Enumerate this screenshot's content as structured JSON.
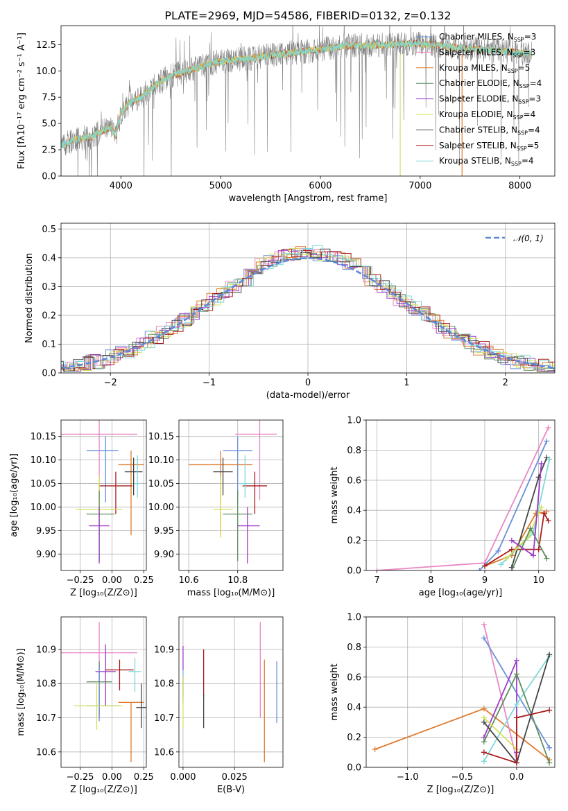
{
  "colors": {
    "Chabrier MILES": "#6a8fd9",
    "Salpeter MILES": "#e887c4",
    "Kroupa MILES": "#e07a2c",
    "Chabrier ELODIE": "#5e8c5e",
    "Salpeter ELODIE": "#9c3cc7",
    "Kroupa ELODIE": "#d4e05a",
    "Chabrier STELIB": "#444444",
    "Salpeter STELIB": "#a81b1b",
    "Kroupa STELIB": "#7fd8d8",
    "data": "#808080",
    "normal": "#5b88d6"
  },
  "chart_data": [
    {
      "id": "spectrum",
      "type": "line",
      "title": "PLATE=2969, MJD=54586, FIBERID=0132, z=0.132",
      "xlabel": "wavelength [Angstrom, rest frame]",
      "ylabel": "Flux [fλ10⁻¹⁷ erg cm⁻² s⁻¹ A⁻¹]",
      "xlim": [
        3400,
        8350
      ],
      "ylim": [
        0,
        14.3
      ],
      "xticks": [
        "4000",
        "5000",
        "6000",
        "7000",
        "8000"
      ],
      "yticks": [
        "0.0",
        "2.5",
        "5.0",
        "7.5",
        "10.0",
        "12.5"
      ],
      "legend_position": "upper-right",
      "legend": [
        {
          "name": "Chabrier MILES",
          "nssp": "3"
        },
        {
          "name": "Salpeter MILES",
          "nssp": "3"
        },
        {
          "name": "Kroupa MILES",
          "nssp": "5"
        },
        {
          "name": "Chabrier ELODIE",
          "nssp": "4"
        },
        {
          "name": "Salpeter ELODIE",
          "nssp": "3"
        },
        {
          "name": "Kroupa ELODIE",
          "nssp": "4"
        },
        {
          "name": "Chabrier STELIB",
          "nssp": "4"
        },
        {
          "name": "Salpeter STELIB",
          "nssp": "5"
        },
        {
          "name": "Kroupa STELIB",
          "nssp": "4"
        }
      ],
      "continuum": {
        "x": [
          3380,
          3500,
          3600,
          3700,
          3800,
          3900,
          3950,
          4000,
          4100,
          4200,
          4300,
          4400,
          4500,
          4700,
          4900,
          5100,
          5300,
          5500,
          5700,
          5900,
          6100,
          6300,
          6500,
          6700,
          6900,
          7100,
          7300,
          7500,
          7700,
          7900,
          8100
        ],
        "y": [
          2.8,
          3.3,
          3.6,
          3.7,
          4.2,
          4.6,
          3.8,
          6.0,
          7.1,
          7.5,
          8.3,
          9.0,
          9.5,
          10.1,
          10.7,
          11.0,
          11.2,
          11.5,
          11.7,
          11.9,
          12.2,
          12.4,
          12.4,
          12.5,
          12.6,
          12.5,
          12.3,
          12.1,
          12.0,
          11.8,
          11.6
        ]
      },
      "vertical_lines": [
        {
          "x": 6800,
          "series": "Kroupa ELODIE"
        },
        {
          "x": 7420,
          "series": "Kroupa MILES"
        }
      ]
    },
    {
      "id": "residuals",
      "type": "line",
      "xlabel": "(data-model)/error",
      "ylabel": "Normed distribution",
      "xlim": [
        -2.5,
        2.5
      ],
      "ylim": [
        0,
        0.52
      ],
      "xticks": [
        "−2",
        "−1",
        "0",
        "1",
        "2"
      ],
      "yticks": [
        "0.0",
        "0.1",
        "0.2",
        "0.3",
        "0.4",
        "0.5"
      ],
      "grid": true,
      "legend_position": "upper-right",
      "normal_label": "𝒩(0, 1)"
    },
    {
      "id": "age-vs-Z",
      "type": "scatter",
      "xlabel": "Z [log₁₀(Z/Z⊙)]",
      "ylabel": "age  [log₁₀(age/yr)]",
      "xlim": [
        -0.4,
        0.27
      ],
      "ylim": [
        9.865,
        10.185
      ],
      "xticks": [
        "−0.25",
        "0.00",
        "0.25"
      ],
      "yticks": [
        "9.90",
        "9.95",
        "10.00",
        "10.05",
        "10.10",
        "10.15"
      ],
      "grid": true,
      "points": [
        {
          "series": "Salpeter MILES",
          "x": -0.1,
          "xerr": [
            0.3,
            0.3
          ],
          "y": 10.155,
          "yerr": [
            0.14,
            0.03
          ]
        },
        {
          "series": "Chabrier MILES",
          "x": -0.05,
          "xerr": [
            0.15,
            0.1
          ],
          "y": 10.12,
          "yerr": [
            0.11,
            0.03
          ]
        },
        {
          "series": "Kroupa MILES",
          "x": 0.15,
          "xerr": [
            0.1,
            0.1
          ],
          "y": 10.09,
          "yerr": [
            0.15,
            0.03
          ]
        },
        {
          "series": "Chabrier STELIB",
          "x": 0.17,
          "xerr": [
            0.07,
            0.07
          ],
          "y": 10.075,
          "yerr": [
            0.05,
            0.03
          ]
        },
        {
          "series": "Salpeter STELIB",
          "x": 0.03,
          "xerr": [
            0.13,
            0.13
          ],
          "y": 10.045,
          "yerr": [
            0.06,
            0.03
          ]
        },
        {
          "series": "Kroupa STELIB",
          "x": 0.2,
          "xerr": [
            0.02,
            0.02
          ],
          "y": 10.05,
          "yerr": [
            0.03,
            0.06
          ]
        },
        {
          "series": "Kroupa ELODIE",
          "x": -0.1,
          "xerr": [
            0.18,
            0.18
          ],
          "y": 9.995,
          "yerr": [
            0.06,
            0.07
          ]
        },
        {
          "series": "Chabrier ELODIE",
          "x": -0.1,
          "xerr": [
            0.1,
            0.12
          ],
          "y": 9.985,
          "yerr": [
            0.1,
            0.05
          ]
        },
        {
          "series": "Salpeter ELODIE",
          "x": -0.1,
          "xerr": [
            0.08,
            0.08
          ],
          "y": 9.96,
          "yerr": [
            0.08,
            0.04
          ]
        }
      ]
    },
    {
      "id": "age-vs-mass",
      "type": "scatter",
      "xlabel": "mass [log₁₀(M/M⊙)]",
      "xlim": [
        10.56,
        10.985
      ],
      "ylim": [
        9.865,
        10.185
      ],
      "xticks": [
        "10.6",
        "10.8"
      ],
      "yticks": [
        "9.90",
        "9.95",
        "10.00",
        "10.05",
        "10.10",
        "10.15"
      ],
      "grid": true,
      "points": [
        {
          "series": "Salpeter MILES",
          "x": 10.89,
          "xerr": [
            0.1,
            0.07
          ],
          "y": 10.155,
          "yerr": [
            0.14,
            0.03
          ]
        },
        {
          "series": "Chabrier MILES",
          "x": 10.8,
          "xerr": [
            0.06,
            0.06
          ],
          "y": 10.12,
          "yerr": [
            0.11,
            0.03
          ]
        },
        {
          "series": "Kroupa MILES",
          "x": 10.73,
          "xerr": [
            0.13,
            0.13
          ],
          "y": 10.09,
          "yerr": [
            0.15,
            0.03
          ]
        },
        {
          "series": "Chabrier STELIB",
          "x": 10.74,
          "xerr": [
            0.04,
            0.04
          ],
          "y": 10.075,
          "yerr": [
            0.05,
            0.03
          ]
        },
        {
          "series": "Salpeter STELIB",
          "x": 10.87,
          "xerr": [
            0.05,
            0.05
          ],
          "y": 10.045,
          "yerr": [
            0.06,
            0.03
          ]
        },
        {
          "series": "Kroupa STELIB",
          "x": 10.83,
          "xerr": [
            0.02,
            0.02
          ],
          "y": 10.05,
          "yerr": [
            0.03,
            0.06
          ]
        },
        {
          "series": "Kroupa ELODIE",
          "x": 10.73,
          "xerr": [
            0.03,
            0.05
          ],
          "y": 9.995,
          "yerr": [
            0.06,
            0.07
          ]
        },
        {
          "series": "Chabrier ELODIE",
          "x": 10.8,
          "xerr": [
            0.06,
            0.06
          ],
          "y": 9.985,
          "yerr": [
            0.1,
            0.05
          ]
        },
        {
          "series": "Salpeter ELODIE",
          "x": 10.84,
          "xerr": [
            0.04,
            0.05
          ],
          "y": 9.96,
          "yerr": [
            0.08,
            0.04
          ]
        }
      ]
    },
    {
      "id": "mass-weight-vs-age",
      "type": "line",
      "xlabel": "age  [log₁₀(age/yr)]",
      "ylabel": "mass weight",
      "xlim": [
        6.8,
        10.3
      ],
      "ylim": [
        0,
        1.0
      ],
      "xticks": [
        "7",
        "8",
        "9",
        "10"
      ],
      "yticks": [
        "0.0",
        "0.2",
        "0.4",
        "0.6",
        "0.8",
        "1.0"
      ],
      "grid": true,
      "series": [
        {
          "name": "Salpeter MILES",
          "x": [
            7.0,
            9.0,
            10.18
          ],
          "y": [
            0.0,
            0.05,
            0.95
          ]
        },
        {
          "name": "Chabrier MILES",
          "x": [
            8.9,
            9.25,
            10.15
          ],
          "y": [
            0.0,
            0.13,
            0.86
          ]
        },
        {
          "name": "Kroupa MILES",
          "x": [
            9.0,
            9.5,
            9.95,
            10.15
          ],
          "y": [
            0.03,
            0.1,
            0.38,
            0.39
          ]
        },
        {
          "name": "Chabrier STELIB",
          "x": [
            9.5,
            10.0,
            10.15
          ],
          "y": [
            0.02,
            0.62,
            0.75
          ]
        },
        {
          "name": "Salpeter STELIB",
          "x": [
            9.0,
            9.5,
            10.0,
            10.1,
            10.18
          ],
          "y": [
            0.03,
            0.14,
            0.14,
            0.38,
            0.33
          ]
        },
        {
          "name": "Kroupa STELIB",
          "x": [
            9.3,
            9.9,
            10.2
          ],
          "y": [
            0.04,
            0.25,
            0.74
          ]
        },
        {
          "name": "Kroupa ELODIE",
          "x": [
            9.4,
            9.8,
            10.05
          ],
          "y": [
            0.08,
            0.22,
            0.42
          ]
        },
        {
          "name": "Chabrier ELODIE",
          "x": [
            9.5,
            9.85,
            10.15
          ],
          "y": [
            0.0,
            0.28,
            0.08
          ]
        },
        {
          "name": "Salpeter ELODIE",
          "x": [
            9.5,
            9.9,
            10.05
          ],
          "y": [
            0.2,
            0.1,
            0.71
          ]
        }
      ]
    },
    {
      "id": "mass-vs-Z",
      "type": "scatter",
      "xlabel": "Z [log₁₀(Z/Z⊙)]",
      "ylabel": "mass [log₁₀(M/M⊙)]",
      "xlim": [
        -0.4,
        0.27
      ],
      "ylim": [
        10.555,
        10.995
      ],
      "xticks": [
        "−0.25",
        "0.00",
        "0.25"
      ],
      "yticks": [
        "10.6",
        "10.7",
        "10.8",
        "10.9"
      ],
      "grid": true,
      "points": [
        {
          "series": "Salpeter MILES",
          "x": -0.1,
          "xerr": [
            0.3,
            0.3
          ],
          "y": 10.89,
          "yerr": [
            0.19,
            0.09
          ]
        },
        {
          "series": "Kroupa MILES",
          "x": 0.15,
          "xerr": [
            0.1,
            0.1
          ],
          "y": 10.745,
          "yerr": [
            0.175,
            0.0
          ]
        },
        {
          "series": "Salpeter ELODIE",
          "x": -0.05,
          "xerr": [
            0.08,
            0.08
          ],
          "y": 10.835,
          "yerr": [
            0.1,
            0.08
          ]
        },
        {
          "series": "Salpeter STELIB",
          "x": 0.06,
          "xerr": [
            0.11,
            0.11
          ],
          "y": 10.84,
          "yerr": [
            0.06,
            0.03
          ]
        },
        {
          "series": "Kroupa STELIB",
          "x": 0.18,
          "xerr": [
            0.05,
            0.05
          ],
          "y": 10.835,
          "yerr": [
            0.06,
            0.04
          ]
        },
        {
          "series": "Chabrier ELODIE",
          "x": -0.1,
          "xerr": [
            0.1,
            0.1
          ],
          "y": 10.805,
          "yerr": [
            0.1,
            0.06
          ]
        },
        {
          "series": "Chabrier MILES",
          "x": -0.1,
          "xerr": [
            0.1,
            0.16
          ],
          "y": 10.735,
          "yerr": [
            0.045,
            0.115
          ]
        },
        {
          "series": "Kroupa ELODIE",
          "x": -0.12,
          "xerr": [
            0.18,
            0.2
          ],
          "y": 10.735,
          "yerr": [
            0.07,
            0.07
          ]
        },
        {
          "series": "Chabrier STELIB",
          "x": 0.23,
          "xerr": [
            0.04,
            0.04
          ],
          "y": 10.73,
          "yerr": [
            0.06,
            0.07
          ]
        }
      ]
    },
    {
      "id": "mass-vs-EBV",
      "type": "scatter",
      "xlabel": "E(B-V)",
      "xlim": [
        -0.002,
        0.0485
      ],
      "ylim": [
        10.555,
        10.995
      ],
      "xticks": [
        "0.000",
        "0.025"
      ],
      "yticks": [
        "10.6",
        "10.7",
        "10.8",
        "10.9"
      ],
      "grid": true,
      "points": [
        {
          "series": "Salpeter ELODIE",
          "x": 0.0,
          "y": 10.81,
          "yerr": [
            0.05,
            0.1
          ]
        },
        {
          "series": "Kroupa STELIB",
          "x": 0.0,
          "y": 10.79,
          "yerr": [
            0.05,
            0.05
          ]
        },
        {
          "series": "Kroupa ELODIE",
          "x": 0.0,
          "y": 10.72,
          "yerr": [
            0.05,
            0.1
          ]
        },
        {
          "series": "Salpeter STELIB",
          "x": 0.01,
          "y": 10.83,
          "yerr": [
            0.07,
            0.07
          ]
        },
        {
          "series": "Chabrier STELIB",
          "x": 0.01,
          "y": 10.72,
          "yerr": [
            0.05,
            0.05
          ]
        },
        {
          "series": "Salpeter MILES",
          "x": 0.0375,
          "y": 10.84,
          "yerr": [
            0.14,
            0.14
          ]
        },
        {
          "series": "Kroupa MILES",
          "x": 0.0395,
          "y": 10.72,
          "yerr": [
            0.15,
            0.15
          ]
        },
        {
          "series": "Chabrier MILES",
          "x": 0.0455,
          "y": 10.775,
          "yerr": [
            0.09,
            0.09
          ]
        }
      ]
    },
    {
      "id": "mass-weight-vs-Z",
      "type": "line",
      "xlabel": "Z [log₁₀(Z/Z⊙)]",
      "ylabel": "mass weight",
      "xlim": [
        -1.38,
        0.35
      ],
      "ylim": [
        0,
        1.0
      ],
      "xticks": [
        "−1.0",
        "−0.5",
        "0.0"
      ],
      "yticks": [
        "0.0",
        "0.2",
        "0.4",
        "0.6",
        "0.8",
        "1.0"
      ],
      "grid": true,
      "series": [
        {
          "name": "Kroupa MILES",
          "x": [
            -1.3,
            -0.3,
            0.3
          ],
          "y": [
            0.12,
            0.39,
            0.05
          ]
        },
        {
          "name": "Salpeter MILES",
          "x": [
            -0.3,
            0.0
          ],
          "y": [
            0.95,
            0.05
          ]
        },
        {
          "name": "Chabrier MILES",
          "x": [
            -0.3,
            0.3
          ],
          "y": [
            0.86,
            0.13
          ]
        },
        {
          "name": "Salpeter ELODIE",
          "x": [
            -0.3,
            0.0,
            0.0
          ],
          "y": [
            0.2,
            0.71,
            0.1
          ]
        },
        {
          "name": "Kroupa STELIB",
          "x": [
            -0.3,
            0.0,
            0.3
          ],
          "y": [
            0.04,
            0.42,
            0.74
          ]
        },
        {
          "name": "Chabrier ELODIE",
          "x": [
            -0.3,
            0.0,
            0.3
          ],
          "y": [
            0.17,
            0.62,
            0.03
          ]
        },
        {
          "name": "Kroupa ELODIE",
          "x": [
            -0.3,
            0.0
          ],
          "y": [
            0.33,
            0.12
          ]
        },
        {
          "name": "Chabrier STELIB",
          "x": [
            -0.3,
            0.0,
            0.3
          ],
          "y": [
            0.3,
            0.03,
            0.75
          ]
        },
        {
          "name": "Salpeter STELIB",
          "x": [
            -0.3,
            0.0,
            0.0,
            0.3
          ],
          "y": [
            0.1,
            0.03,
            0.33,
            0.38
          ]
        }
      ]
    }
  ]
}
